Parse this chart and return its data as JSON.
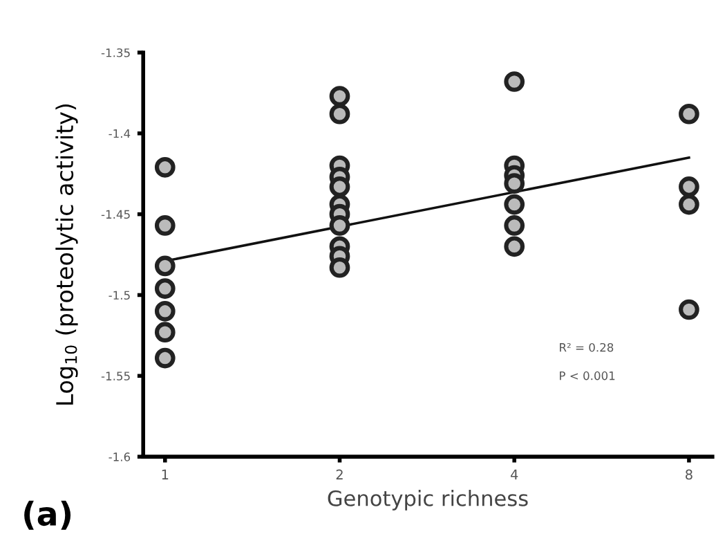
{
  "chart_data": {
    "type": "scatter",
    "xlabel": "Genotypic richness",
    "ylabel": "Log$_{10}$ (proteolytic activity)",
    "log": "x",
    "xlim": [
      0.917,
      8.78
    ],
    "xticks": [
      1,
      2,
      4,
      8
    ],
    "ylim": [
      -1.6,
      -1.35
    ],
    "yticks": [
      -1.6,
      -1.55,
      -1.5,
      -1.45,
      -1.4,
      -1.35
    ],
    "marker": "circle",
    "grid": false,
    "annotations": [
      "R² = 0.28",
      "P < 0.001",
      "(a)"
    ],
    "series": [
      {
        "color": "#222222",
        "x": [
          1,
          1,
          1,
          1,
          1,
          1,
          1,
          2,
          2,
          2,
          2,
          2,
          2,
          2,
          2,
          2,
          2,
          2,
          4,
          4,
          4,
          4,
          4,
          4,
          4,
          8,
          8,
          8,
          8
        ],
        "values": [
          -1.421,
          -1.457,
          -1.482,
          -1.496,
          -1.51,
          -1.523,
          -1.539,
          -1.377,
          -1.388,
          -1.42,
          -1.427,
          -1.433,
          -1.444,
          -1.45,
          -1.457,
          -1.47,
          -1.476,
          -1.483,
          -1.368,
          -1.42,
          -1.426,
          -1.431,
          -1.444,
          -1.457,
          -1.47,
          -1.388,
          -1.433,
          -1.444,
          -1.509
        ]
      },
      {
        "type": "line",
        "color": "#111111",
        "x": [
          1,
          8
        ],
        "values": [
          -1.479,
          -1.415
        ],
        "marker": "none"
      }
    ]
  }
}
